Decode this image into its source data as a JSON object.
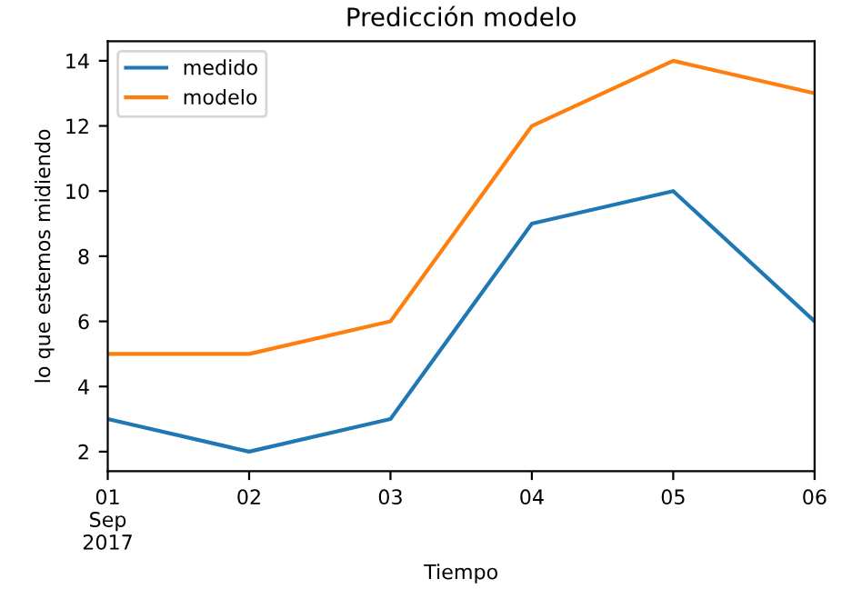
{
  "chart_data": {
    "type": "line",
    "title": "Predicción modelo",
    "xlabel": "Tiempo",
    "ylabel": "lo que estemos midiendo",
    "x": [
      "2017-09-01",
      "2017-09-02",
      "2017-09-03",
      "2017-09-04",
      "2017-09-05",
      "2017-09-06"
    ],
    "series": [
      {
        "name": "medido",
        "color": "#1f77b4",
        "values": [
          3,
          2,
          3,
          9,
          10,
          6
        ]
      },
      {
        "name": "modelo",
        "color": "#ff7f0e",
        "values": [
          5,
          5,
          6,
          12,
          14,
          13
        ]
      }
    ],
    "xlim": [
      "2017-09-01",
      "2017-09-06"
    ],
    "xticks": [
      {
        "value": "2017-09-01",
        "label": "01\nSep\n2017"
      },
      {
        "value": "2017-09-02",
        "label": "02"
      },
      {
        "value": "2017-09-03",
        "label": "03"
      },
      {
        "value": "2017-09-04",
        "label": "04"
      },
      {
        "value": "2017-09-05",
        "label": "05"
      },
      {
        "value": "2017-09-06",
        "label": "06"
      }
    ],
    "ylim": [
      1.4,
      14.6
    ],
    "yticks": [
      2,
      4,
      6,
      8,
      10,
      12,
      14
    ],
    "grid": false,
    "legend": "top left"
  }
}
